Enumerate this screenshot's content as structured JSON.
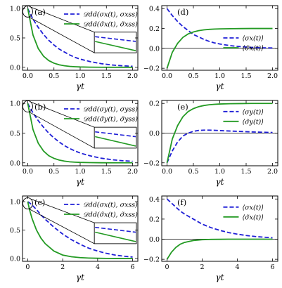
{
  "colors": {
    "dashed": "#1f1fd6",
    "solid": "#239a23",
    "axis": "#000000",
    "zero_line": "#000000"
  },
  "xlabel": "γt",
  "chart_data": [
    {
      "id": "a",
      "panel_label": "(a)",
      "type": "line",
      "xlim": [
        -0.1,
        2.1
      ],
      "ylim": [
        -0.05,
        1.05
      ],
      "xticks": [
        "0.0",
        "0.5",
        "1.0",
        "1.5",
        "2.0"
      ],
      "xtick_values": [
        0,
        0.5,
        1,
        1.5,
        2
      ],
      "yticks": [
        "0.0",
        "0.5",
        "1.0"
      ],
      "ytick_values": [
        0,
        0.5,
        1
      ],
      "xlabel": "γt",
      "legend": {
        "entries": [
          "𝒟dd(σx(t), σxss)",
          "𝒟dd(σ̃x(t), σ̃xss)"
        ]
      },
      "inset": {
        "present": true
      },
      "zoom_circle": {
        "x": 0,
        "y": 0.95
      },
      "x": [
        0,
        0.1,
        0.2,
        0.3,
        0.4,
        0.5,
        0.6,
        0.7,
        0.8,
        0.9,
        1.0,
        1.2,
        1.4,
        1.6,
        1.8,
        2.0
      ],
      "series": [
        {
          "style": "dashed",
          "values": [
            1.0,
            0.82,
            0.68,
            0.56,
            0.46,
            0.38,
            0.31,
            0.26,
            0.21,
            0.17,
            0.14,
            0.095,
            0.062,
            0.04,
            0.026,
            0.017
          ]
        },
        {
          "style": "solid",
          "values": [
            1.0,
            0.55,
            0.32,
            0.19,
            0.115,
            0.07,
            0.043,
            0.026,
            0.016,
            0.01,
            0.006,
            0.002,
            0.001,
            0.0,
            0.0,
            0.0
          ]
        }
      ]
    },
    {
      "id": "d",
      "panel_label": "(d)",
      "type": "line",
      "xlim": [
        -0.1,
        2.1
      ],
      "ylim": [
        -0.22,
        0.43
      ],
      "xticks": [
        "0.0",
        "0.5",
        "1.0",
        "1.5",
        "2.0"
      ],
      "xtick_values": [
        0,
        0.5,
        1,
        1.5,
        2
      ],
      "yticks": [
        "−0.2",
        "0.0",
        "0.2",
        "0.4"
      ],
      "ytick_values": [
        -0.2,
        0,
        0.2,
        0.4
      ],
      "xlabel": "γt",
      "zero_line": true,
      "legend": {
        "entries": [
          "⟨σx(t)⟩",
          "⟨σ̃x(t)⟩"
        ]
      },
      "inset": {
        "present": false
      },
      "x": [
        0,
        0.1,
        0.2,
        0.3,
        0.4,
        0.5,
        0.6,
        0.7,
        0.8,
        0.9,
        1.0,
        1.2,
        1.4,
        1.6,
        1.8,
        2.0
      ],
      "series": [
        {
          "style": "dashed",
          "values": [
            0.4,
            0.33,
            0.27,
            0.22,
            0.18,
            0.14,
            0.115,
            0.09,
            0.07,
            0.055,
            0.044,
            0.027,
            0.017,
            0.01,
            0.006,
            0.004
          ]
        },
        {
          "style": "solid",
          "values": [
            -0.2,
            -0.04,
            0.05,
            0.11,
            0.145,
            0.165,
            0.178,
            0.186,
            0.191,
            0.194,
            0.196,
            0.198,
            0.199,
            0.2,
            0.2,
            0.2
          ]
        }
      ]
    },
    {
      "id": "b",
      "panel_label": "(b)",
      "type": "line",
      "xlim": [
        -0.1,
        2.1
      ],
      "ylim": [
        -0.05,
        1.05
      ],
      "xticks": [
        "0.0",
        "0.5",
        "1.0",
        "1.5",
        "2.0"
      ],
      "xtick_values": [
        0,
        0.5,
        1,
        1.5,
        2
      ],
      "yticks": [
        "0.0",
        "0.5",
        "1.0"
      ],
      "ytick_values": [
        0,
        0.5,
        1
      ],
      "xlabel": "γt",
      "legend": {
        "entries": [
          "𝒟dd(σy(t), σyss)",
          "𝒟dd(σ̃y(t), σ̃yss)"
        ]
      },
      "inset": {
        "present": true
      },
      "zoom_circle": {
        "x": 0,
        "y": 0.95
      },
      "x": [
        0,
        0.1,
        0.2,
        0.3,
        0.4,
        0.5,
        0.6,
        0.7,
        0.8,
        0.9,
        1.0,
        1.2,
        1.4,
        1.6,
        1.8,
        2.0
      ],
      "series": [
        {
          "style": "dashed",
          "values": [
            1.0,
            0.84,
            0.71,
            0.6,
            0.5,
            0.42,
            0.35,
            0.29,
            0.24,
            0.2,
            0.165,
            0.115,
            0.078,
            0.053,
            0.036,
            0.025
          ]
        },
        {
          "style": "solid",
          "values": [
            1.0,
            0.56,
            0.33,
            0.2,
            0.12,
            0.075,
            0.046,
            0.028,
            0.017,
            0.011,
            0.007,
            0.003,
            0.001,
            0.0,
            0.0,
            0.0
          ]
        }
      ]
    },
    {
      "id": "e",
      "panel_label": "(e)",
      "type": "line",
      "xlim": [
        -0.1,
        2.1
      ],
      "ylim": [
        -0.22,
        0.22
      ],
      "xticks": [
        "0.0",
        "0.5",
        "1.0",
        "1.5",
        "2.0"
      ],
      "xtick_values": [
        0,
        0.5,
        1,
        1.5,
        2
      ],
      "yticks": [
        "−0.2",
        "0.0",
        "0.2"
      ],
      "ytick_values": [
        -0.2,
        0,
        0.2
      ],
      "xlabel": "γt",
      "zero_line": true,
      "legend": {
        "entries": [
          "⟨σy(t)⟩",
          "⟨σ̃y(t)⟩"
        ]
      },
      "inset": {
        "present": false
      },
      "x": [
        0,
        0.1,
        0.2,
        0.3,
        0.4,
        0.5,
        0.6,
        0.7,
        0.8,
        0.9,
        1.0,
        1.2,
        1.4,
        1.6,
        1.8,
        2.0
      ],
      "series": [
        {
          "style": "dashed",
          "values": [
            -0.2,
            -0.12,
            -0.06,
            -0.02,
            0.0,
            0.012,
            0.018,
            0.02,
            0.02,
            0.019,
            0.017,
            0.014,
            0.011,
            0.008,
            0.006,
            0.004
          ]
        },
        {
          "style": "solid",
          "values": [
            -0.2,
            -0.04,
            0.05,
            0.11,
            0.145,
            0.165,
            0.178,
            0.186,
            0.191,
            0.194,
            0.196,
            0.198,
            0.199,
            0.2,
            0.2,
            0.2
          ]
        }
      ]
    },
    {
      "id": "c",
      "panel_label": "(c)",
      "type": "line",
      "xlim": [
        -0.3,
        6.3
      ],
      "ylim": [
        -0.05,
        1.1
      ],
      "xticks": [
        "0",
        "2",
        "4",
        "6"
      ],
      "xtick_values": [
        0,
        2,
        4,
        6
      ],
      "yticks": [
        "0.0",
        "0.5",
        "1.0"
      ],
      "ytick_values": [
        0,
        0.5,
        1
      ],
      "xlabel": "γt",
      "legend": {
        "entries": [
          "𝒟dd(σx(t), σxss)",
          "𝒟dd(σ̃x(t), σ̃xss)"
        ]
      },
      "inset": {
        "present": true
      },
      "zoom_circle": {
        "x": 0,
        "y": 0.97
      },
      "x": [
        0,
        0.1,
        0.25,
        0.5,
        0.75,
        1.0,
        1.5,
        2.0,
        2.5,
        3.0,
        3.5,
        4.0,
        4.5,
        5.0,
        5.5,
        6.0
      ],
      "series": [
        {
          "style": "dashed",
          "values": [
            1.0,
            0.98,
            0.94,
            0.86,
            0.77,
            0.69,
            0.55,
            0.43,
            0.33,
            0.25,
            0.18,
            0.13,
            0.09,
            0.06,
            0.04,
            0.025
          ]
        },
        {
          "style": "solid",
          "values": [
            1.0,
            0.86,
            0.7,
            0.5,
            0.36,
            0.26,
            0.13,
            0.06,
            0.03,
            0.015,
            0.007,
            0.003,
            0.001,
            0.0,
            0.0,
            0.0
          ]
        }
      ]
    },
    {
      "id": "f",
      "panel_label": "(f)",
      "type": "line",
      "xlim": [
        -0.3,
        6.3
      ],
      "ylim": [
        -0.22,
        0.43
      ],
      "xticks": [
        "0",
        "2",
        "4",
        "6"
      ],
      "xtick_values": [
        0,
        2,
        4,
        6
      ],
      "yticks": [
        "−0.2",
        "0.0",
        "0.2",
        "0.4"
      ],
      "ytick_values": [
        -0.2,
        0,
        0.2,
        0.4
      ],
      "xlabel": "γt",
      "zero_line": true,
      "legend": {
        "entries": [
          "⟨σx(t)⟩",
          "⟨σ̃x(t)⟩"
        ]
      },
      "inset": {
        "present": false
      },
      "x": [
        0,
        0.25,
        0.5,
        0.75,
        1.0,
        1.5,
        2.0,
        2.5,
        3.0,
        3.5,
        4.0,
        4.5,
        5.0,
        5.5,
        6.0
      ],
      "series": [
        {
          "style": "dashed",
          "values": [
            0.4,
            0.36,
            0.32,
            0.28,
            0.25,
            0.2,
            0.15,
            0.115,
            0.088,
            0.066,
            0.05,
            0.037,
            0.027,
            0.02,
            0.014
          ]
        },
        {
          "style": "solid",
          "values": [
            -0.2,
            -0.13,
            -0.082,
            -0.05,
            -0.032,
            -0.013,
            -0.005,
            -0.002,
            -0.001,
            0.0,
            0.0,
            0.0,
            0.0,
            0.0,
            0.0
          ]
        }
      ]
    }
  ]
}
